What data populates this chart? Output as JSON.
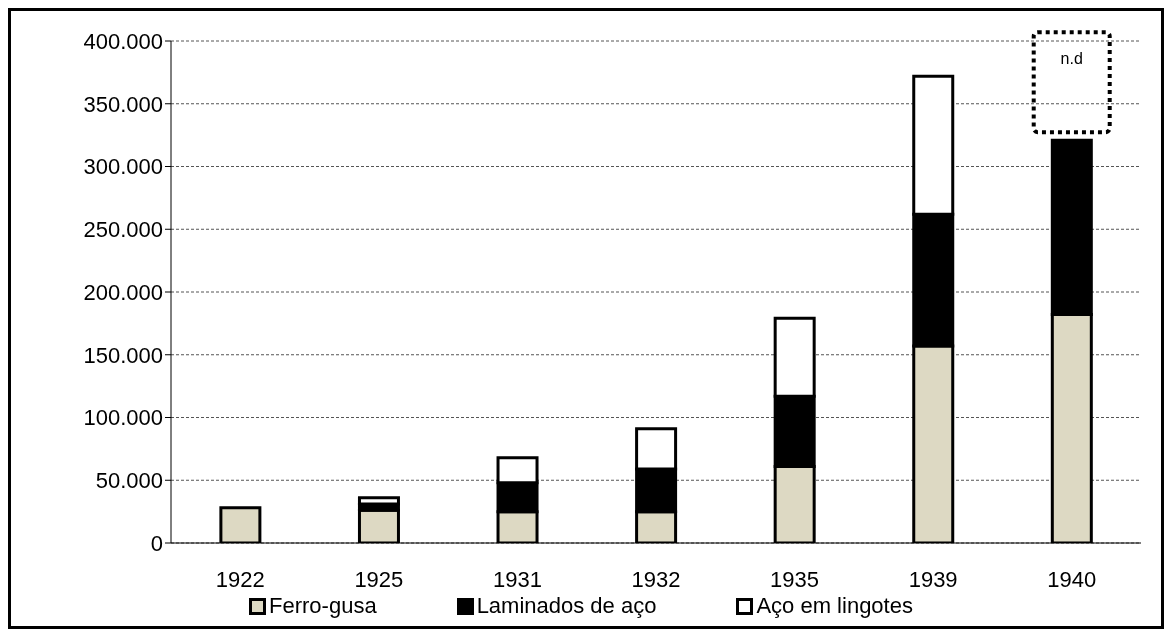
{
  "chart_data": {
    "type": "bar",
    "stacked": true,
    "categories": [
      "1922",
      "1925",
      "1931",
      "1932",
      "1935",
      "1939",
      "1940"
    ],
    "series": [
      {
        "name": "Ferro-gusa",
        "color": "#ddd9c3",
        "values": [
          28000,
          26000,
          25000,
          25000,
          61000,
          157000,
          182000
        ]
      },
      {
        "name": "Laminados de aço",
        "color": "#000000",
        "values": [
          null,
          5000,
          23000,
          34000,
          56000,
          105000,
          139000
        ]
      },
      {
        "name": "Aço em lingotes",
        "color": "#ffffff",
        "values": [
          null,
          5000,
          20000,
          32000,
          62000,
          110000,
          null
        ]
      }
    ],
    "ylim": [
      0,
      400000
    ],
    "yticks": [
      {
        "value": 0,
        "label": "0"
      },
      {
        "value": 50000,
        "label": "50.000"
      },
      {
        "value": 100000,
        "label": "100.000"
      },
      {
        "value": 150000,
        "label": "150.000"
      },
      {
        "value": 200000,
        "label": "200.000"
      },
      {
        "value": 250000,
        "label": "250.000"
      },
      {
        "value": 300000,
        "label": "300.000"
      },
      {
        "value": 350000,
        "label": "350.000"
      },
      {
        "value": 400000,
        "label": "400.000"
      }
    ],
    "grid": "y",
    "legend": "bottom",
    "annotations": [
      "n.d"
    ]
  }
}
